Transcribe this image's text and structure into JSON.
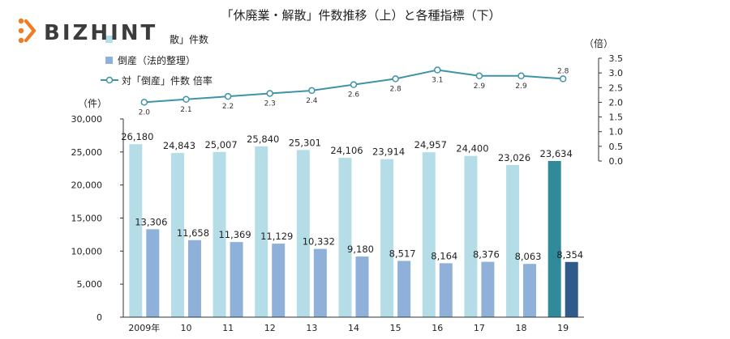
{
  "logo": {
    "text": "BIZHINT",
    "color_main": "#3c3c3c",
    "color_accent": "#f07b22"
  },
  "chart_data": {
    "type": "bar",
    "title": "「休廃業・解散」件数推移（上）と各種指標（下）",
    "categories": [
      "2009年",
      "10",
      "11",
      "12",
      "13",
      "14",
      "15",
      "16",
      "17",
      "18",
      "19"
    ],
    "series": [
      {
        "name": "「休廃業・解散」件数",
        "legend_label": "散」件数",
        "type": "bar",
        "color": "#b5dde8",
        "highlight_color": "#2f8a9a",
        "values": [
          26180,
          24843,
          25007,
          25840,
          25301,
          24106,
          23914,
          24957,
          24400,
          23026,
          23634
        ],
        "labels": [
          "26,180",
          "24,843",
          "25,007",
          "25,840",
          "25,301",
          "24,106",
          "23,914",
          "24,957",
          "24,400",
          "23,026",
          "23,634"
        ]
      },
      {
        "name": "倒産（法的整理）",
        "type": "bar",
        "color": "#8fb0d8",
        "highlight_color": "#2f5a8a",
        "values": [
          13306,
          11658,
          11369,
          11129,
          10332,
          9180,
          8517,
          8164,
          8376,
          8063,
          8354
        ],
        "labels": [
          "13,306",
          "11,658",
          "11,369",
          "11,129",
          "10,332",
          "9,180",
          "8,517",
          "8,164",
          "8,376",
          "8,063",
          "8,354"
        ]
      },
      {
        "name": "対「倒産」件数 倍率",
        "type": "line",
        "axis": "right",
        "color": "#3f93a8",
        "values": [
          2.0,
          2.1,
          2.2,
          2.3,
          2.4,
          2.6,
          2.8,
          3.1,
          2.9,
          2.9,
          2.8
        ],
        "labels": [
          "2.0",
          "2.1",
          "2.2",
          "2.3",
          "2.4",
          "2.6",
          "2.8",
          "3.1",
          "2.9",
          "2.9",
          "2.8"
        ]
      }
    ],
    "highlight_index": 10,
    "y_left": {
      "unit": "（件）",
      "ylim": [
        0,
        30000
      ],
      "ticks": [
        "0",
        "5,000",
        "10,000",
        "15,000",
        "20,000",
        "25,000",
        "30,000"
      ],
      "tick_values": [
        0,
        5000,
        10000,
        15000,
        20000,
        25000,
        30000
      ]
    },
    "y_right": {
      "unit": "（倍）",
      "ylim": [
        0,
        3.5
      ],
      "ticks": [
        "0.0",
        "0.5",
        "1.0",
        "1.5",
        "2.0",
        "2.5",
        "3.0",
        "3.5"
      ],
      "tick_values": [
        0,
        0.5,
        1.0,
        1.5,
        2.0,
        2.5,
        3.0,
        3.5
      ]
    },
    "grid": false,
    "legend_position": "top-left"
  }
}
